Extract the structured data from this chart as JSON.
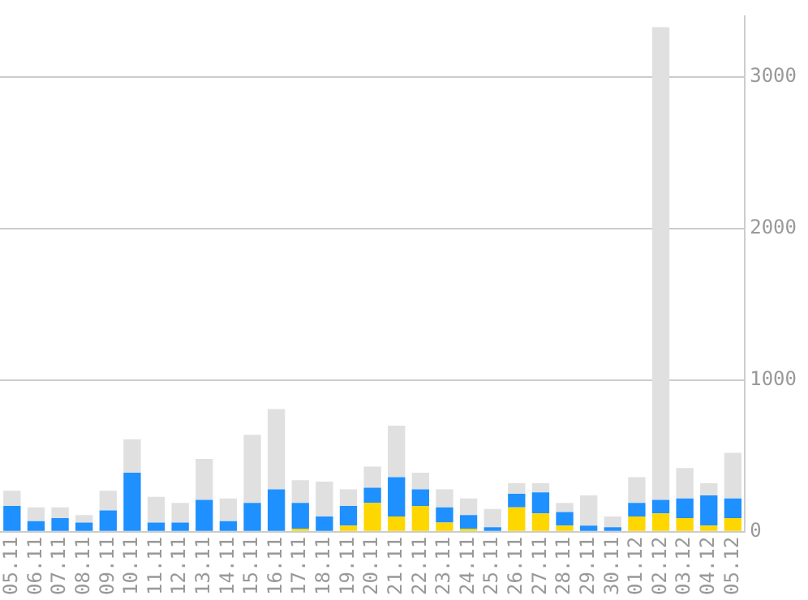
{
  "chart_data": {
    "type": "bar",
    "stacked": true,
    "grid": "y",
    "legend": false,
    "categories": [
      "05.11",
      "06.11",
      "07.11",
      "08.11",
      "09.11",
      "10.11",
      "11.11",
      "12.11",
      "13.11",
      "14.11",
      "15.11",
      "16.11",
      "17.11",
      "18.11",
      "19.11",
      "20.11",
      "21.11",
      "22.11",
      "23.11",
      "24.11",
      "25.11",
      "26.11",
      "27.11",
      "28.11",
      "29.11",
      "30.11",
      "01.12",
      "02.12",
      "03.12",
      "04.12",
      "05.12"
    ],
    "series": [
      {
        "color": "#ffd700",
        "values": [
          0,
          0,
          0,
          0,
          0,
          0,
          0,
          0,
          0,
          0,
          0,
          0,
          20,
          0,
          40,
          190,
          100,
          170,
          60,
          20,
          0,
          160,
          120,
          40,
          0,
          0,
          100,
          120,
          90,
          40,
          90
        ]
      },
      {
        "color": "#1e90ff",
        "values": [
          170,
          70,
          90,
          60,
          140,
          390,
          60,
          60,
          210,
          70,
          190,
          280,
          170,
          100,
          130,
          100,
          260,
          110,
          100,
          90,
          30,
          90,
          140,
          90,
          40,
          30,
          90,
          90,
          130,
          200,
          130
        ]
      },
      {
        "color": "#e0e0e0",
        "values": [
          100,
          90,
          70,
          50,
          130,
          220,
          170,
          130,
          270,
          150,
          450,
          530,
          150,
          230,
          110,
          140,
          340,
          110,
          120,
          110,
          120,
          70,
          60,
          60,
          200,
          70,
          170,
          3120,
          200,
          80,
          300
        ]
      }
    ],
    "ylim": [
      0,
      3400
    ],
    "yticks": [
      0,
      1000,
      2000,
      3000
    ]
  }
}
